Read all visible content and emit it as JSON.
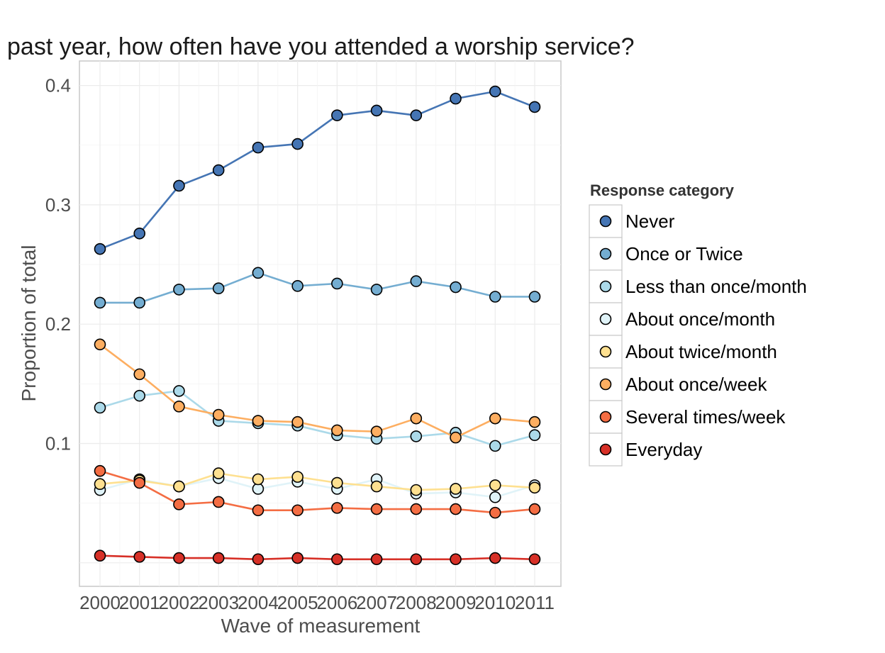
{
  "chart_data": {
    "type": "line",
    "title": "past year, how often have you attended a worship service?",
    "xlabel": "Wave of measurement",
    "ylabel": "Proportion of total",
    "x": [
      2000,
      2001,
      2002,
      2003,
      2004,
      2005,
      2006,
      2007,
      2008,
      2009,
      2010,
      2011
    ],
    "ylim": [
      -0.02,
      0.42
    ],
    "yticks": [
      0.1,
      0.2,
      0.3,
      0.4
    ],
    "ytick_labels": [
      "0.1",
      "0.2",
      "0.3",
      "0.4"
    ],
    "grid": true,
    "legend": {
      "title": "Response category",
      "placement": "right"
    },
    "series": [
      {
        "name": "Never",
        "color": "#4575b4",
        "values": [
          0.263,
          0.276,
          0.316,
          0.329,
          0.348,
          0.351,
          0.375,
          0.379,
          0.375,
          0.389,
          0.395,
          0.382
        ]
      },
      {
        "name": "Once or Twice",
        "color": "#74add1",
        "values": [
          0.218,
          0.218,
          0.229,
          0.23,
          0.243,
          0.232,
          0.234,
          0.229,
          0.236,
          0.231,
          0.223,
          0.223
        ]
      },
      {
        "name": "Less than once/month",
        "color": "#abd9e9",
        "values": [
          0.13,
          0.14,
          0.144,
          0.119,
          0.117,
          0.115,
          0.107,
          0.104,
          0.106,
          0.109,
          0.098,
          0.107
        ]
      },
      {
        "name": "About once/month",
        "color": "#e0f3f8",
        "values": [
          0.061,
          0.07,
          0.064,
          0.071,
          0.062,
          0.068,
          0.062,
          0.07,
          0.058,
          0.059,
          0.055,
          0.065
        ]
      },
      {
        "name": "About twice/month",
        "color": "#fee090",
        "values": [
          0.066,
          0.069,
          0.064,
          0.075,
          0.07,
          0.072,
          0.067,
          0.064,
          0.061,
          0.062,
          0.065,
          0.063
        ]
      },
      {
        "name": "About once/week",
        "color": "#fdae61",
        "values": [
          0.183,
          0.158,
          0.131,
          0.124,
          0.119,
          0.118,
          0.111,
          0.11,
          0.121,
          0.105,
          0.121,
          0.118
        ]
      },
      {
        "name": "Several times/week",
        "color": "#f46d43",
        "values": [
          0.077,
          0.067,
          0.049,
          0.051,
          0.044,
          0.044,
          0.046,
          0.045,
          0.045,
          0.045,
          0.042,
          0.045
        ]
      },
      {
        "name": "Everyday",
        "color": "#d73027",
        "values": [
          0.006,
          0.005,
          0.004,
          0.004,
          0.003,
          0.004,
          0.003,
          0.003,
          0.003,
          0.003,
          0.004,
          0.003
        ]
      }
    ]
  }
}
